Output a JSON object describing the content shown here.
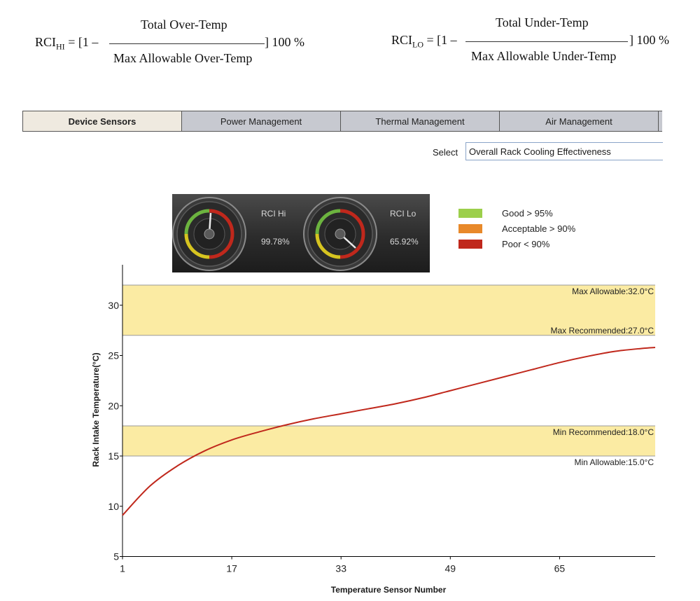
{
  "formulas": {
    "hi": {
      "lhs_main": "RCI",
      "lhs_sub": "HI",
      "lhs_rest": " = [1 –",
      "numerator": "Total Over-Temp",
      "denominator": "Max Allowable Over-Temp",
      "tail": "] 100 %"
    },
    "lo": {
      "lhs_main": "RCI",
      "lhs_sub": "LO",
      "lhs_rest": " = [1 –",
      "numerator": "Total Under-Temp",
      "denominator": "Max Allowable Under-Temp",
      "tail": "] 100 %"
    }
  },
  "tabs": [
    {
      "label": "Device Sensors",
      "active": true
    },
    {
      "label": "Power Management",
      "active": false
    },
    {
      "label": "Thermal Management",
      "active": false
    },
    {
      "label": "Air Management",
      "active": false
    }
  ],
  "select": {
    "label": "Select",
    "value": "Overall Rack Cooling Effectiveness"
  },
  "gauges": [
    {
      "name": "RCI Hi",
      "value_text": "99.78%",
      "value": 99.78
    },
    {
      "name": "RCI Lo",
      "value_text": "65.92%",
      "value": 65.92
    }
  ],
  "legend": [
    {
      "label": "Good > 95%",
      "color": "#9ccf4b"
    },
    {
      "label": "Acceptable > 90%",
      "color": "#e8892a"
    },
    {
      "label": "Poor < 90%",
      "color": "#c0281c"
    }
  ],
  "chart_data": {
    "type": "line",
    "xlabel": "Temperature Sensor Number",
    "ylabel": "Rack Intake Temperature(°C)",
    "xlim": [
      1,
      79
    ],
    "ylim": [
      5,
      33.5
    ],
    "x_ticks": [
      1,
      17,
      33,
      49,
      65
    ],
    "y_ticks": [
      5,
      10,
      15,
      20,
      25,
      30
    ],
    "line_color": "#c0281c",
    "series": [
      {
        "x": [
          1,
          5,
          9,
          13,
          17,
          21,
          25,
          29,
          33,
          37,
          41,
          45,
          49,
          53,
          57,
          61,
          65,
          69,
          73,
          77,
          79
        ],
        "y": [
          9.1,
          12.0,
          14.0,
          15.5,
          16.6,
          17.4,
          18.1,
          18.7,
          19.2,
          19.7,
          20.2,
          20.8,
          21.5,
          22.2,
          22.9,
          23.6,
          24.3,
          24.9,
          25.4,
          25.7,
          25.8
        ]
      }
    ],
    "bands": [
      {
        "from": 27,
        "to": 32,
        "color": "#fbeba3"
      },
      {
        "from": 15,
        "to": 18,
        "color": "#fbeba3"
      }
    ],
    "threshold_lines": [
      {
        "value": 32,
        "label": "Max Allowable:32.0°C",
        "label_pos": "below"
      },
      {
        "value": 27,
        "label": "Max Recommended:27.0°C",
        "label_pos": "above"
      },
      {
        "value": 18,
        "label": "Min Recommended:18.0°C",
        "label_pos": "below"
      },
      {
        "value": 15,
        "label": "Min Allowable:15.0°C",
        "label_pos": "below"
      }
    ]
  }
}
